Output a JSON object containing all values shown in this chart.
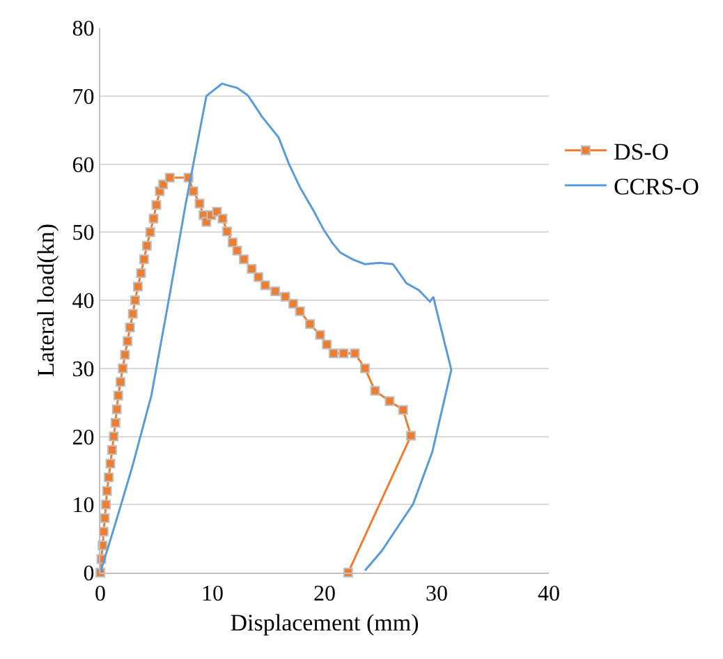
{
  "chart_data": {
    "type": "line",
    "xlabel": "Displacement (mm)",
    "ylabel": "Lateral load(kn)",
    "xlim": [
      0,
      40
    ],
    "xticks": [
      0,
      10,
      20,
      30,
      40
    ],
    "ylim": [
      0,
      80
    ],
    "yticks": [
      0,
      10,
      20,
      30,
      40,
      50,
      60,
      70,
      80
    ],
    "grid": "y",
    "legend": "top right",
    "series": [
      {
        "name": "DS-O",
        "color": "#ed7d31",
        "marker": "square",
        "x": [
          0,
          0.1,
          0.2,
          0.3,
          0.4,
          0.5,
          0.6,
          0.75,
          0.9,
          1.05,
          1.2,
          1.35,
          1.47,
          1.6,
          1.8,
          2.0,
          2.2,
          2.43,
          2.65,
          2.9,
          3.1,
          3.35,
          3.63,
          3.9,
          4.15,
          4.45,
          4.75,
          5.0,
          5.3,
          5.6,
          6.2,
          7.86,
          8.3,
          8.85,
          9.2,
          9.46,
          9.9,
          10.4,
          10.9,
          11.3,
          11.8,
          12.2,
          12.8,
          13.5,
          14.1,
          14.7,
          15.6,
          16.5,
          17.2,
          17.8,
          18.7,
          19.6,
          20.2,
          20.8,
          21.7,
          22.7,
          23.6,
          24.5,
          25.8,
          27.0,
          27.7,
          22.1
        ],
        "values": [
          0,
          2,
          4,
          6,
          8,
          10,
          12,
          14,
          16,
          18,
          20,
          22,
          24,
          26,
          28,
          30,
          32,
          34,
          36,
          38,
          40,
          42,
          44,
          46,
          48,
          50,
          52,
          54,
          56,
          57,
          58,
          58,
          56,
          54.2,
          52.5,
          51.5,
          52.5,
          53,
          52,
          50.1,
          48.5,
          47.3,
          46,
          44.6,
          43.4,
          42.2,
          41.3,
          40.5,
          39.5,
          38.4,
          36.5,
          34.9,
          33.5,
          32.2,
          32.2,
          32.2,
          30,
          26.7,
          25.2,
          23.9,
          20.1,
          0
        ]
      },
      {
        "name": "CCRS-O",
        "color": "#5b9bd5",
        "marker": "none",
        "x": [
          0,
          1.4,
          2.86,
          4.55,
          6.08,
          7.62,
          9.46,
          10.85,
          11.5,
          12.2,
          13.15,
          13.8,
          14.4,
          15.9,
          16.8,
          17.8,
          19.0,
          19.9,
          20.7,
          21.4,
          22.5,
          23.6,
          24.9,
          26.1,
          27.3,
          28.4,
          29.4,
          29.7,
          30.0,
          31.3,
          29.6,
          27.9,
          25.1,
          23.6
        ],
        "values": [
          0,
          7.5,
          15.6,
          26.0,
          39.8,
          54.2,
          70,
          71.8,
          71.5,
          71.2,
          70.1,
          68.5,
          67.0,
          63.9,
          60.1,
          56.6,
          53.2,
          50.4,
          48.4,
          47.0,
          46.0,
          45.3,
          45.5,
          45.3,
          42.5,
          41.5,
          39.8,
          40.5,
          38.4,
          29.8,
          17.7,
          10.1,
          3.2,
          0.3
        ]
      }
    ]
  }
}
